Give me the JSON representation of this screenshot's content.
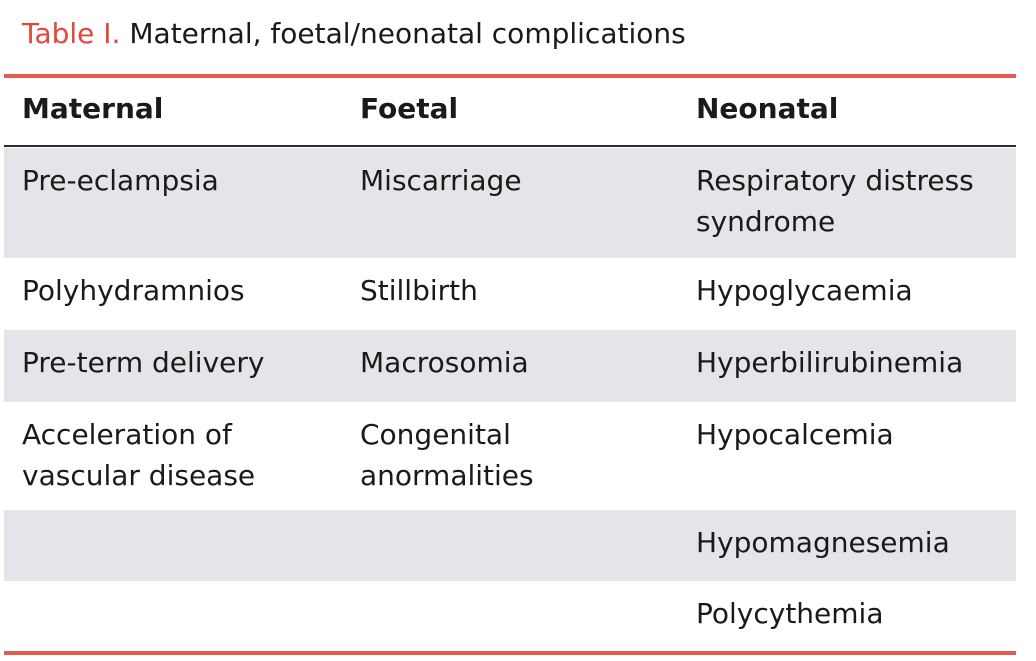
{
  "caption": {
    "label": "Table I.",
    "title": "Maternal, foetal/neonatal complications"
  },
  "headers": [
    "Maternal",
    "Foetal",
    "Neonatal"
  ],
  "rows": [
    {
      "maternal": [
        "Pre-eclampsia"
      ],
      "foetal": [
        "Miscarriage"
      ],
      "neonatal": [
        "Respiratory distress",
        "syndrome"
      ]
    },
    {
      "maternal": [
        "Polyhydramnios"
      ],
      "foetal": [
        "Stillbirth"
      ],
      "neonatal": [
        "Hypoglycaemia"
      ]
    },
    {
      "maternal": [
        "Pre-term delivery"
      ],
      "foetal": [
        "Macrosomia"
      ],
      "neonatal": [
        "Hyperbilirubinemia"
      ]
    },
    {
      "maternal": [
        "Acceleration of",
        "vascular disease"
      ],
      "foetal": [
        "Congenital",
        "anormalities"
      ],
      "neonatal": [
        "Hypocalcemia"
      ]
    },
    {
      "maternal": [],
      "foetal": [],
      "neonatal": [
        "Hypomagnesemia"
      ]
    },
    {
      "maternal": [],
      "foetal": [],
      "neonatal": [
        "Polycythemia"
      ]
    }
  ],
  "colors": {
    "accent": "#e85a4f",
    "caption_label": "#e2473d",
    "row_shade": "#e4e4e9",
    "text": "#1a1a1a"
  }
}
